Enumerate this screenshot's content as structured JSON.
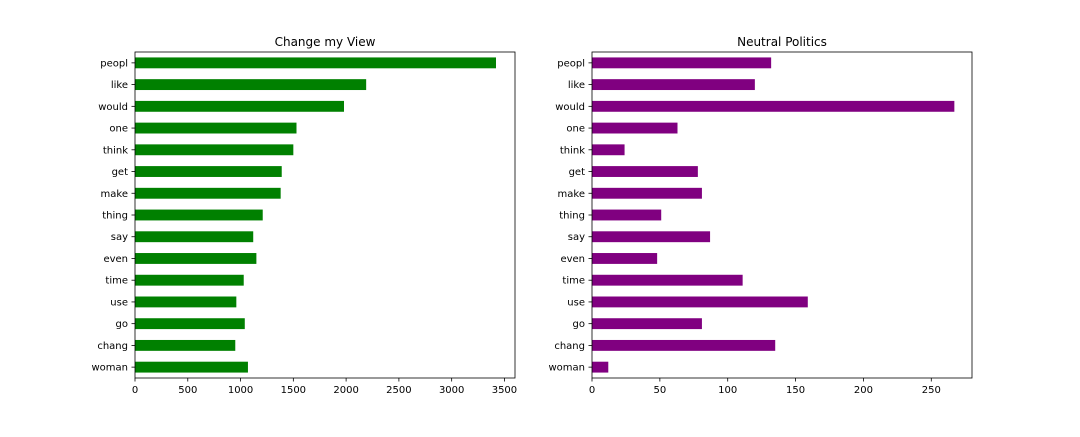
{
  "chart_data": [
    {
      "type": "bar",
      "orientation": "horizontal",
      "title": "Change my View",
      "xlabel": "",
      "ylabel": "",
      "color": "#008000",
      "categories": [
        "peopl",
        "like",
        "would",
        "one",
        "think",
        "get",
        "make",
        "thing",
        "say",
        "even",
        "time",
        "use",
        "go",
        "chang",
        "woman"
      ],
      "values": [
        3420,
        2190,
        1980,
        1530,
        1500,
        1390,
        1380,
        1210,
        1120,
        1150,
        1030,
        960,
        1040,
        950,
        1070
      ],
      "xlim": [
        0,
        3600
      ],
      "xticks": [
        0,
        500,
        1000,
        1500,
        2000,
        2500,
        3000,
        3500
      ],
      "grid": false,
      "legend": "none"
    },
    {
      "type": "bar",
      "orientation": "horizontal",
      "title": "Neutral Politics",
      "xlabel": "",
      "ylabel": "",
      "color": "#800080",
      "categories": [
        "peopl",
        "like",
        "would",
        "one",
        "think",
        "get",
        "make",
        "thing",
        "say",
        "even",
        "time",
        "use",
        "go",
        "chang",
        "woman"
      ],
      "values": [
        132,
        120,
        267,
        63,
        24,
        78,
        81,
        51,
        87,
        48,
        111,
        159,
        81,
        135,
        12
      ],
      "xlim": [
        0,
        280
      ],
      "xticks": [
        0,
        50,
        100,
        150,
        200,
        250
      ],
      "grid": false,
      "legend": "none"
    }
  ]
}
